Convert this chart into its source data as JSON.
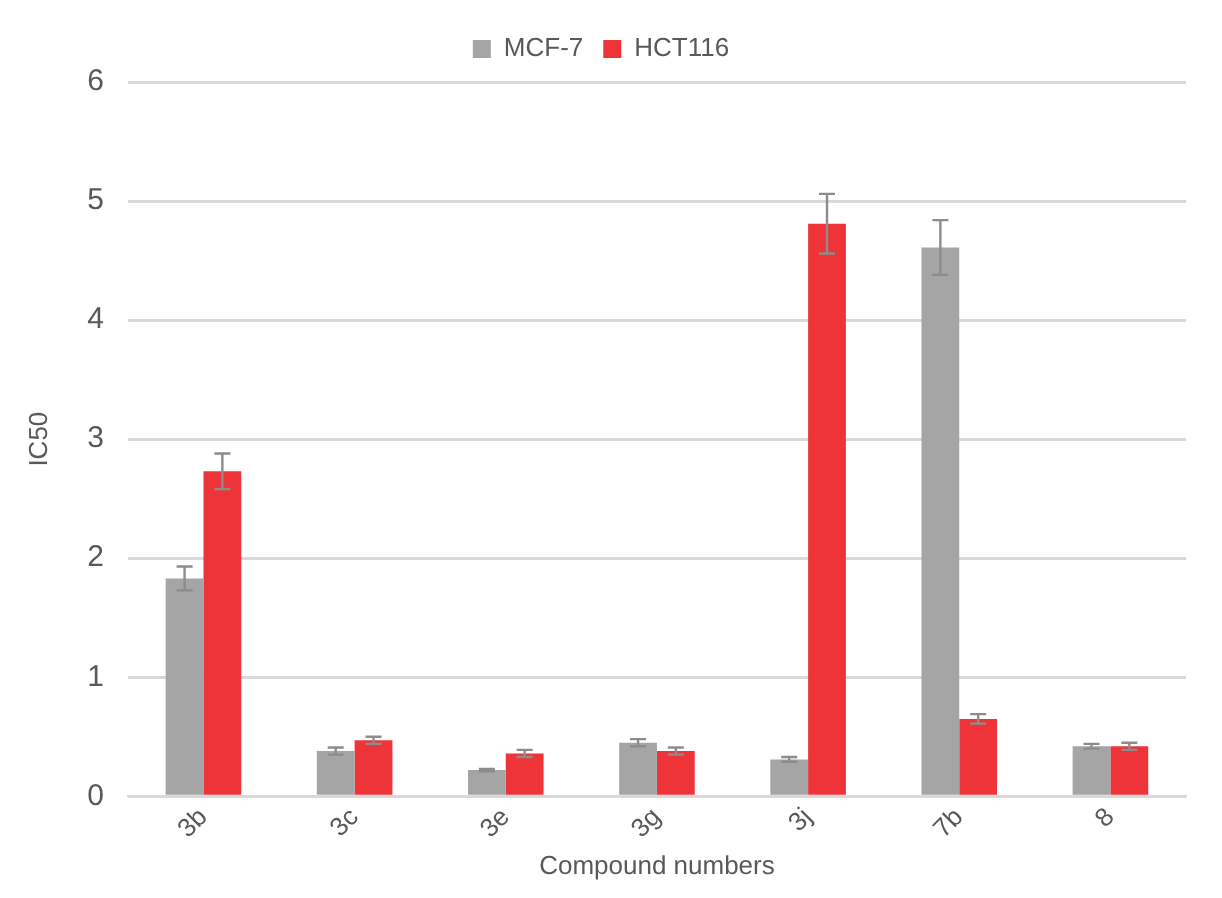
{
  "chart_data": {
    "type": "bar",
    "xlabel": "Compound numbers",
    "ylabel": "IC50",
    "categories": [
      "3b",
      "3c",
      "3e",
      "3g",
      "3j",
      "7b",
      "8"
    ],
    "series": [
      {
        "name": "MCF-7",
        "color": "#a5a5a5",
        "values": [
          1.83,
          0.38,
          0.22,
          0.45,
          0.31,
          4.61,
          0.42
        ],
        "errors": [
          0.1,
          0.03,
          0.01,
          0.03,
          0.02,
          0.23,
          0.02
        ]
      },
      {
        "name": "HCT116",
        "color": "#ee3439",
        "values": [
          2.73,
          0.47,
          0.36,
          0.38,
          4.81,
          0.65,
          0.42
        ],
        "errors": [
          0.15,
          0.03,
          0.03,
          0.03,
          0.25,
          0.04,
          0.03
        ]
      }
    ],
    "ylim": [
      0,
      6
    ],
    "yticks": [
      0,
      1,
      2,
      3,
      4,
      5,
      6
    ],
    "grid": "y",
    "legend": "top"
  }
}
